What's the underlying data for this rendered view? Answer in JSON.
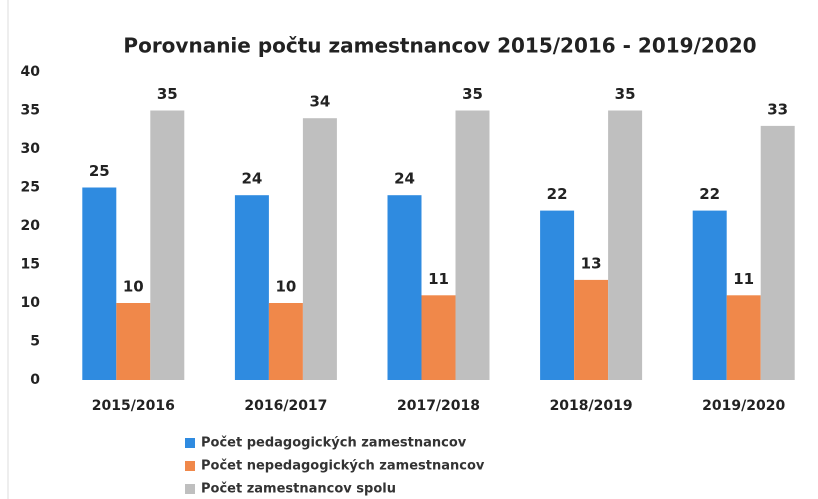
{
  "chart_data": {
    "type": "bar",
    "title": "Porovnanie počtu zamestnancov 2015/2016 -  2019/2020",
    "categories": [
      "2015/2016",
      "2016/2017",
      "2017/2018",
      "2018/2019",
      "2019/2020"
    ],
    "series": [
      {
        "name": "Počet pedagogických zamestnancov",
        "color": "#2f8be0",
        "values": [
          25,
          24,
          24,
          22,
          22
        ]
      },
      {
        "name": "Počet nepedagogických zamestnancov",
        "color": "#f0884a",
        "values": [
          10,
          10,
          11,
          13,
          11
        ]
      },
      {
        "name": "Počet zamestnancov spolu",
        "color": "#bfbfbf",
        "values": [
          35,
          34,
          35,
          35,
          33
        ]
      }
    ],
    "ylim": [
      0,
      40
    ],
    "yticks": [
      0,
      5,
      10,
      15,
      20,
      25,
      30,
      35,
      40
    ],
    "grid": false,
    "legend": "bottom"
  }
}
